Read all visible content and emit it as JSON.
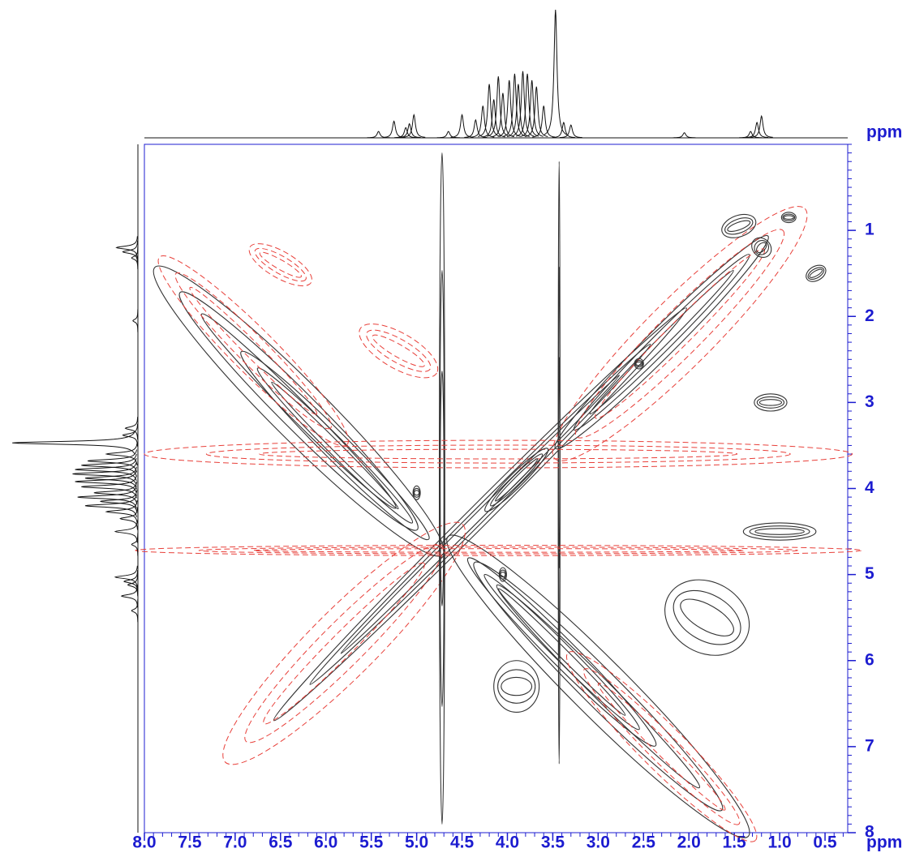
{
  "chart_data": {
    "type": "contour",
    "xlabel": "ppm",
    "ylabel": "ppm",
    "xlim": [
      8.0,
      0.25
    ],
    "ylim": [
      0,
      8
    ],
    "xticks": [
      {
        "value": 8,
        "label": "8.0"
      },
      7.5,
      {
        "value": 7,
        "label": "7.0"
      },
      6.5,
      {
        "value": 6,
        "label": "6.0"
      },
      5.5,
      {
        "value": 5,
        "label": "5.0"
      },
      4.5,
      {
        "value": 4,
        "label": "4.0"
      },
      3.5,
      {
        "value": 3,
        "label": "3.0"
      },
      2.5,
      {
        "value": 2,
        "label": "2.0"
      },
      1.5,
      {
        "value": 1,
        "label": "1.0"
      },
      0.5
    ],
    "yticks": [
      1,
      2,
      3,
      4,
      5,
      6,
      7,
      8
    ],
    "minor_step": 0.1,
    "axis_color": "#1c1cd0",
    "colors": {
      "positive": "#333333",
      "negative": "#e8403a",
      "projection": "#111111"
    },
    "projection": [
      {
        "ppm": 5.42,
        "height": 5
      },
      {
        "ppm": 5.25,
        "height": 13
      },
      {
        "ppm": 5.12,
        "height": 8
      },
      {
        "ppm": 5.08,
        "height": 11
      },
      {
        "ppm": 5.03,
        "height": 18
      },
      {
        "ppm": 4.65,
        "height": 5
      },
      {
        "ppm": 4.5,
        "height": 18
      },
      {
        "ppm": 4.35,
        "height": 14
      },
      {
        "ppm": 4.27,
        "height": 25
      },
      {
        "ppm": 4.2,
        "height": 42
      },
      {
        "ppm": 4.15,
        "height": 30
      },
      {
        "ppm": 4.1,
        "height": 48
      },
      {
        "ppm": 4.05,
        "height": 35
      },
      {
        "ppm": 3.98,
        "height": 45
      },
      {
        "ppm": 3.92,
        "height": 50
      },
      {
        "ppm": 3.88,
        "height": 42
      },
      {
        "ppm": 3.83,
        "height": 52
      },
      {
        "ppm": 3.78,
        "height": 50
      },
      {
        "ppm": 3.73,
        "height": 45
      },
      {
        "ppm": 3.68,
        "height": 40
      },
      {
        "ppm": 3.6,
        "height": 25
      },
      {
        "ppm": 3.47,
        "height": 100
      },
      {
        "ppm": 3.38,
        "height": 12
      },
      {
        "ppm": 3.3,
        "height": 10
      },
      {
        "ppm": 2.05,
        "height": 4
      },
      {
        "ppm": 1.32,
        "height": 5
      },
      {
        "ppm": 1.25,
        "height": 12
      },
      {
        "ppm": 1.2,
        "height": 17
      }
    ],
    "contours": [
      {
        "x": 4.3,
        "y": 4.3,
        "rx": 3.3,
        "ry": 0.12,
        "angle": -45,
        "phase": "positive"
      },
      {
        "x": 2.3,
        "y": 2.3,
        "rx": 1.7,
        "ry": 0.16,
        "angle": -45,
        "phase": "positive"
      },
      {
        "x": 2.1,
        "y": 2.2,
        "rx": 2.0,
        "ry": 0.38,
        "angle": -45,
        "phase": "negative"
      },
      {
        "x": 5.8,
        "y": 5.8,
        "rx": 1.9,
        "ry": 0.38,
        "angle": -45,
        "phase": "negative"
      },
      {
        "x": 6.3,
        "y": 3.1,
        "rx": 2.3,
        "ry": 0.32,
        "angle": 45,
        "phase": "positive"
      },
      {
        "x": 5.9,
        "y": 3.5,
        "rx": 1.5,
        "ry": 0.15,
        "angle": 45,
        "phase": "positive"
      },
      {
        "x": 3.0,
        "y": 6.3,
        "rx": 2.4,
        "ry": 0.32,
        "angle": 45,
        "phase": "positive"
      },
      {
        "x": 3.4,
        "y": 5.9,
        "rx": 1.5,
        "ry": 0.15,
        "angle": 45,
        "phase": "positive"
      },
      {
        "x": 6.8,
        "y": 2.4,
        "rx": 1.5,
        "ry": 0.25,
        "angle": 45,
        "phase": "negative"
      },
      {
        "x": 2.3,
        "y": 7.0,
        "rx": 1.5,
        "ry": 0.25,
        "angle": 45,
        "phase": "negative"
      },
      {
        "x": 4.72,
        "y": 4.0,
        "rx": 0.03,
        "ry": 3.9,
        "angle": 0,
        "phase": "positive"
      },
      {
        "x": 3.43,
        "y": 3.7,
        "rx": 0.01,
        "ry": 3.5,
        "angle": 0,
        "phase": "positive"
      },
      {
        "x": 4.1,
        "y": 4.72,
        "rx": 4.0,
        "ry": 0.06,
        "angle": 0,
        "phase": "negative"
      },
      {
        "x": 4.1,
        "y": 3.6,
        "rx": 3.9,
        "ry": 0.16,
        "angle": 0,
        "phase": "negative"
      },
      {
        "x": 1.2,
        "y": 1.2,
        "rx": 0.1,
        "ry": 0.12,
        "angle": -45,
        "phase": "positive"
      },
      {
        "x": 0.9,
        "y": 0.85,
        "rx": 0.08,
        "ry": 0.06,
        "angle": 0,
        "phase": "positive"
      },
      {
        "x": 2.55,
        "y": 2.55,
        "rx": 0.05,
        "ry": 0.06,
        "angle": 0,
        "phase": "positive"
      },
      {
        "x": 5.0,
        "y": 4.05,
        "rx": 0.04,
        "ry": 0.08,
        "angle": 0,
        "phase": "positive"
      },
      {
        "x": 4.05,
        "y": 5.0,
        "rx": 0.04,
        "ry": 0.08,
        "angle": 0,
        "phase": "positive"
      },
      {
        "x": 3.9,
        "y": 3.9,
        "rx": 0.5,
        "ry": 0.08,
        "angle": -45,
        "phase": "positive"
      },
      {
        "x": 1.45,
        "y": 0.95,
        "rx": 0.2,
        "ry": 0.12,
        "angle": -20,
        "phase": "positive"
      },
      {
        "x": 1.1,
        "y": 3.0,
        "rx": 0.18,
        "ry": 0.1,
        "angle": 0,
        "phase": "positive"
      },
      {
        "x": 0.6,
        "y": 1.5,
        "rx": 0.12,
        "ry": 0.08,
        "angle": -30,
        "phase": "positive"
      },
      {
        "x": 1.8,
        "y": 5.5,
        "rx": 0.5,
        "ry": 0.4,
        "angle": 30,
        "phase": "positive"
      },
      {
        "x": 3.9,
        "y": 6.3,
        "rx": 0.25,
        "ry": 0.3,
        "angle": 0,
        "phase": "positive"
      },
      {
        "x": 5.2,
        "y": 2.4,
        "rx": 0.5,
        "ry": 0.2,
        "angle": 30,
        "phase": "negative"
      },
      {
        "x": 6.5,
        "y": 1.4,
        "rx": 0.4,
        "ry": 0.15,
        "angle": 30,
        "phase": "negative"
      },
      {
        "x": 1.0,
        "y": 4.5,
        "rx": 0.4,
        "ry": 0.1,
        "angle": 0,
        "phase": "positive"
      }
    ]
  }
}
